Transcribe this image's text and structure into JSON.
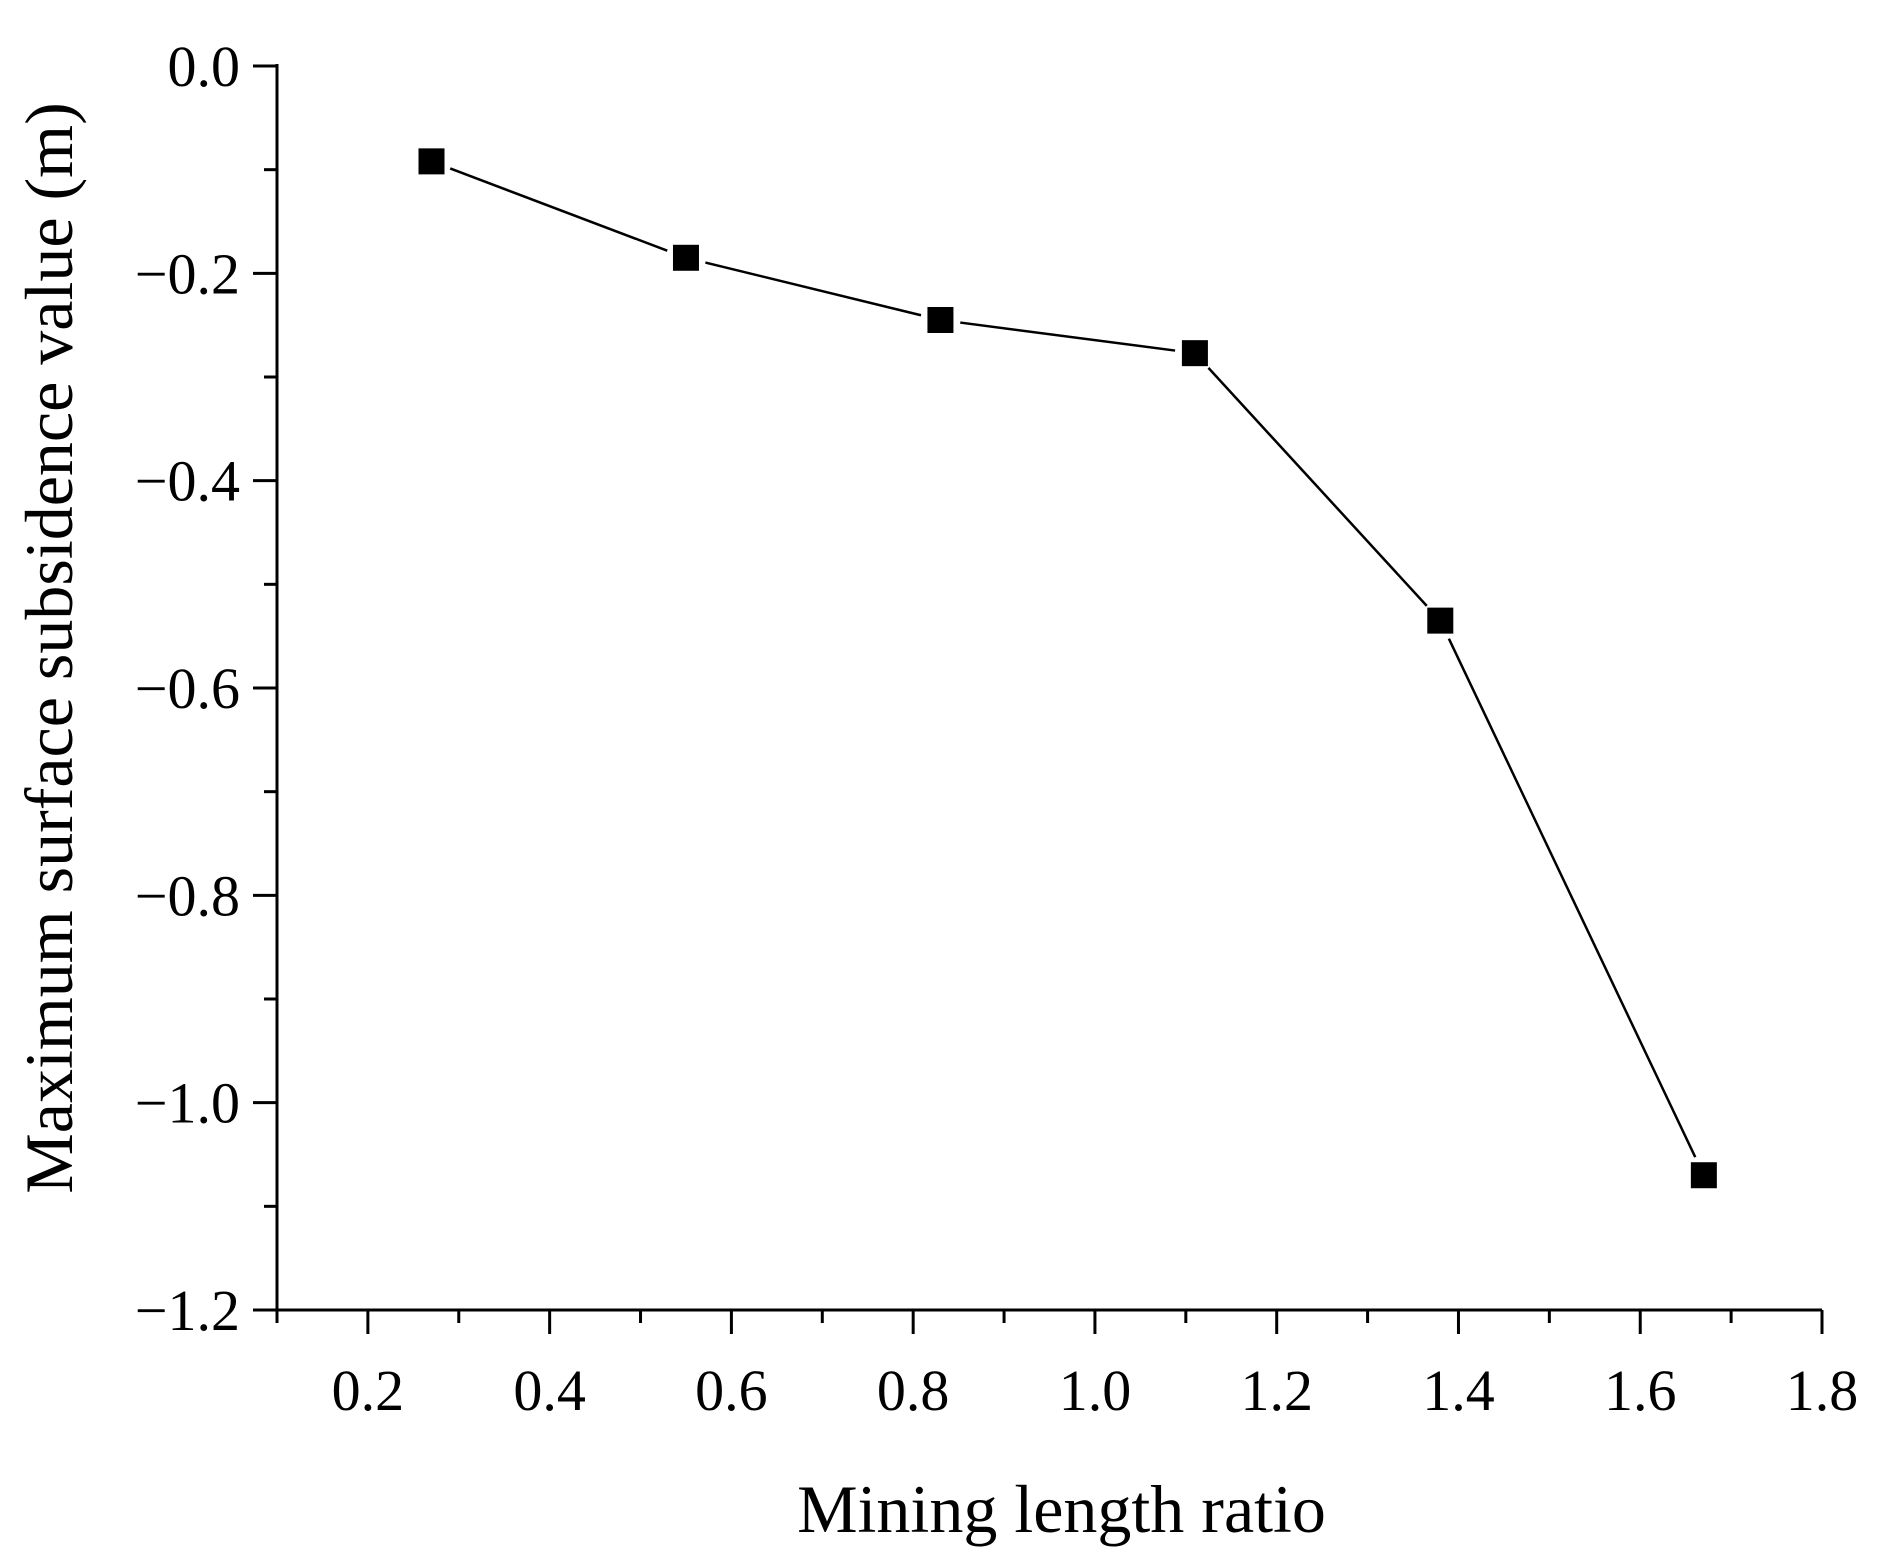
{
  "chart_data": {
    "type": "line",
    "title": "",
    "xlabel": "Mining length ratio",
    "ylabel": "Maximum surface subsidence value (m)",
    "xlim": [
      0.1,
      1.8
    ],
    "ylim": [
      -1.2,
      0.0
    ],
    "x_ticks": [
      0.2,
      0.4,
      0.6,
      0.8,
      1.0,
      1.2,
      1.4,
      1.6,
      1.8
    ],
    "x_tick_labels": [
      "0.2",
      "0.4",
      "0.6",
      "0.8",
      "1.0",
      "1.2",
      "1.4",
      "1.6",
      "1.8"
    ],
    "x_minor_ticks": [
      0.1,
      0.3,
      0.5,
      0.7,
      0.9,
      1.1,
      1.3,
      1.5,
      1.7
    ],
    "y_ticks": [
      0.0,
      -0.2,
      -0.4,
      -0.6,
      -0.8,
      -1.0,
      -1.2
    ],
    "y_tick_labels": [
      "0.0",
      "−0.2",
      "−0.4",
      "−0.6",
      "−0.8",
      "−1.0",
      "−1.2"
    ],
    "y_minor_ticks": [
      -0.1,
      -0.3,
      -0.5,
      -0.7,
      -0.9,
      -1.1
    ],
    "grid": false,
    "legend": false,
    "series": [
      {
        "name": "Maximum surface subsidence",
        "marker": "square",
        "color": "#000000",
        "x": [
          0.27,
          0.55,
          0.83,
          1.11,
          1.38,
          1.67
        ],
        "y": [
          -0.092,
          -0.185,
          -0.245,
          -0.277,
          -0.535,
          -1.07
        ]
      }
    ]
  }
}
